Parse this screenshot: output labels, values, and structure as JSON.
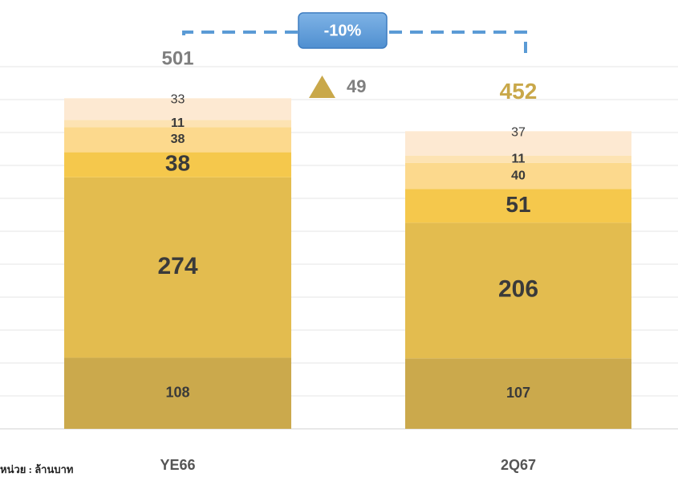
{
  "chart_data": {
    "type": "stacked_bar",
    "categories": [
      "YE66",
      "2Q67"
    ],
    "series": [
      {
        "color": "#cba94c",
        "values": [
          108,
          107
        ]
      },
      {
        "color": "#e3bc4f",
        "values": [
          274,
          206
        ]
      },
      {
        "color": "#f5c84c",
        "values": [
          38,
          51
        ]
      },
      {
        "color": "#fcd98d",
        "values": [
          38,
          40
        ]
      },
      {
        "color": "#fde3b3",
        "values": [
          11,
          11
        ]
      },
      {
        "color": "#fde9d2",
        "values": [
          33,
          37
        ]
      }
    ],
    "totals": [
      501,
      452
    ],
    "change_annotation": "-10%",
    "difference": 49,
    "unit_label": "หน่วย : ล้านบาท",
    "ylim": [
      0,
      550
    ],
    "yticks": [
      0,
      50,
      100,
      150,
      200,
      250,
      300,
      350,
      400,
      450,
      500,
      550
    ],
    "grid": true
  }
}
